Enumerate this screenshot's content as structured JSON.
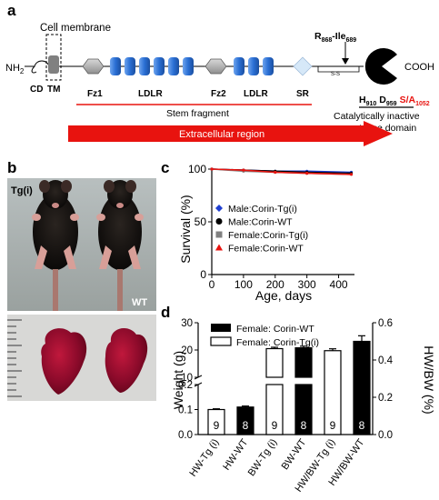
{
  "panel_a": {
    "letter": "a",
    "cell_membrane": "Cell membrane",
    "n_terminus": "NH",
    "n_terminus_sub": "2",
    "c_terminus": "COOH",
    "domains": {
      "cd": "CD",
      "tm": "TM",
      "fz1": "Fz1",
      "ldlr1": "LDLR",
      "fz2": "Fz2",
      "ldlr2": "LDLR",
      "sr": "SR"
    },
    "cleavage": {
      "r": "R",
      "r_sub": "868",
      "sep": "-",
      "ile": "Ile",
      "ile_sub": "689"
    },
    "disulfide": "S-S",
    "residues": {
      "h": "H",
      "h_sub": "910",
      "d": "D",
      "d_sub": "959",
      "sa": "S/A",
      "sa_sub": "1052"
    },
    "protease_label_line1": "Catalytically inactive",
    "protease_label_line2": "protease domain",
    "stem_fragment": "Stem fragment",
    "extracellular": "Extracellular region",
    "colors": {
      "fz": "#b0b0b0",
      "ldlr": "#2a6fd4",
      "sr": "#d6e8f8",
      "red": "#e8130f",
      "tm": "#808080"
    }
  },
  "panel_b": {
    "letter": "b",
    "label_tg": "Tg(i)",
    "label_wt": "WT"
  },
  "panel_c": {
    "letter": "c",
    "ylabel": "Survival (%)",
    "xlabel": "Age, days",
    "yticks": [
      "0",
      "50",
      "100"
    ],
    "xticks": [
      "0",
      "100",
      "200",
      "300",
      "400"
    ],
    "legend": [
      {
        "label": "Male:Corin-Tg(i)",
        "color": "#1f3fd1",
        "marker": "diamond"
      },
      {
        "label": "Male:Corin-WT",
        "color": "#000000",
        "marker": "circle"
      },
      {
        "label": "Female:Corin-Tg(i)",
        "color": "#808080",
        "marker": "square"
      },
      {
        "label": "Female:Corin-WT",
        "color": "#e8130f",
        "marker": "triangle"
      }
    ]
  },
  "panel_d": {
    "letter": "d",
    "ylabel_left": "Weight (g)",
    "ylabel_right": "HW/BW (%)",
    "legend_wt": "Female: Corin-WT",
    "legend_tg": "Female: Corin-Tg(i)",
    "left_ticks_lower": [
      "0.0",
      "0.1",
      "0.2"
    ],
    "left_ticks_upper": [
      "10",
      "20",
      "30"
    ],
    "right_ticks": [
      "0.0",
      "0.2",
      "0.4",
      "0.6"
    ]
  },
  "chart_data": [
    {
      "type": "line",
      "xlabel": "Age, days",
      "ylabel": "Survival (%)",
      "xlim": [
        0,
        450
      ],
      "ylim": [
        0,
        100
      ],
      "series": [
        {
          "name": "Male:Corin-Tg(i)",
          "x": [
            0,
            100,
            200,
            300,
            440
          ],
          "values": [
            100,
            99,
            98,
            98,
            97
          ]
        },
        {
          "name": "Male:Corin-WT",
          "x": [
            0,
            100,
            200,
            300,
            440
          ],
          "values": [
            100,
            99,
            98,
            97,
            96
          ]
        },
        {
          "name": "Female:Corin-Tg(i)",
          "x": [
            0,
            100,
            200,
            300,
            440
          ],
          "values": [
            100,
            98,
            97,
            96,
            95
          ]
        },
        {
          "name": "Female:Corin-WT",
          "x": [
            0,
            100,
            200,
            300,
            440
          ],
          "values": [
            100,
            99,
            97,
            96,
            95
          ]
        }
      ]
    },
    {
      "type": "bar",
      "categories": [
        "HW-Tg (i)",
        "HW-WT",
        "BW-Tg (i)",
        "BW-WT",
        "HW/BW-Tg (i)",
        "HW/BW-WT"
      ],
      "values": [
        0.1,
        0.11,
        20.5,
        20.8,
        0.45,
        0.5
      ],
      "errors": [
        0.003,
        0.004,
        0.5,
        0.6,
        0.01,
        0.03
      ],
      "n": [
        "9",
        "8",
        "9",
        "8",
        "9",
        "8"
      ],
      "group": [
        "Female: Corin-Tg(i)",
        "Female: Corin-WT",
        "Female: Corin-Tg(i)",
        "Female: Corin-WT",
        "Female: Corin-Tg(i)",
        "Female: Corin-WT"
      ],
      "axis": [
        "left",
        "left",
        "left",
        "left",
        "right",
        "right"
      ],
      "ylabel": "Weight (g)",
      "y2label": "HW/BW (%)",
      "ylim_lower": [
        0.0,
        0.2
      ],
      "ylim_upper": [
        10,
        30
      ],
      "y2lim": [
        0.0,
        0.6
      ]
    }
  ]
}
